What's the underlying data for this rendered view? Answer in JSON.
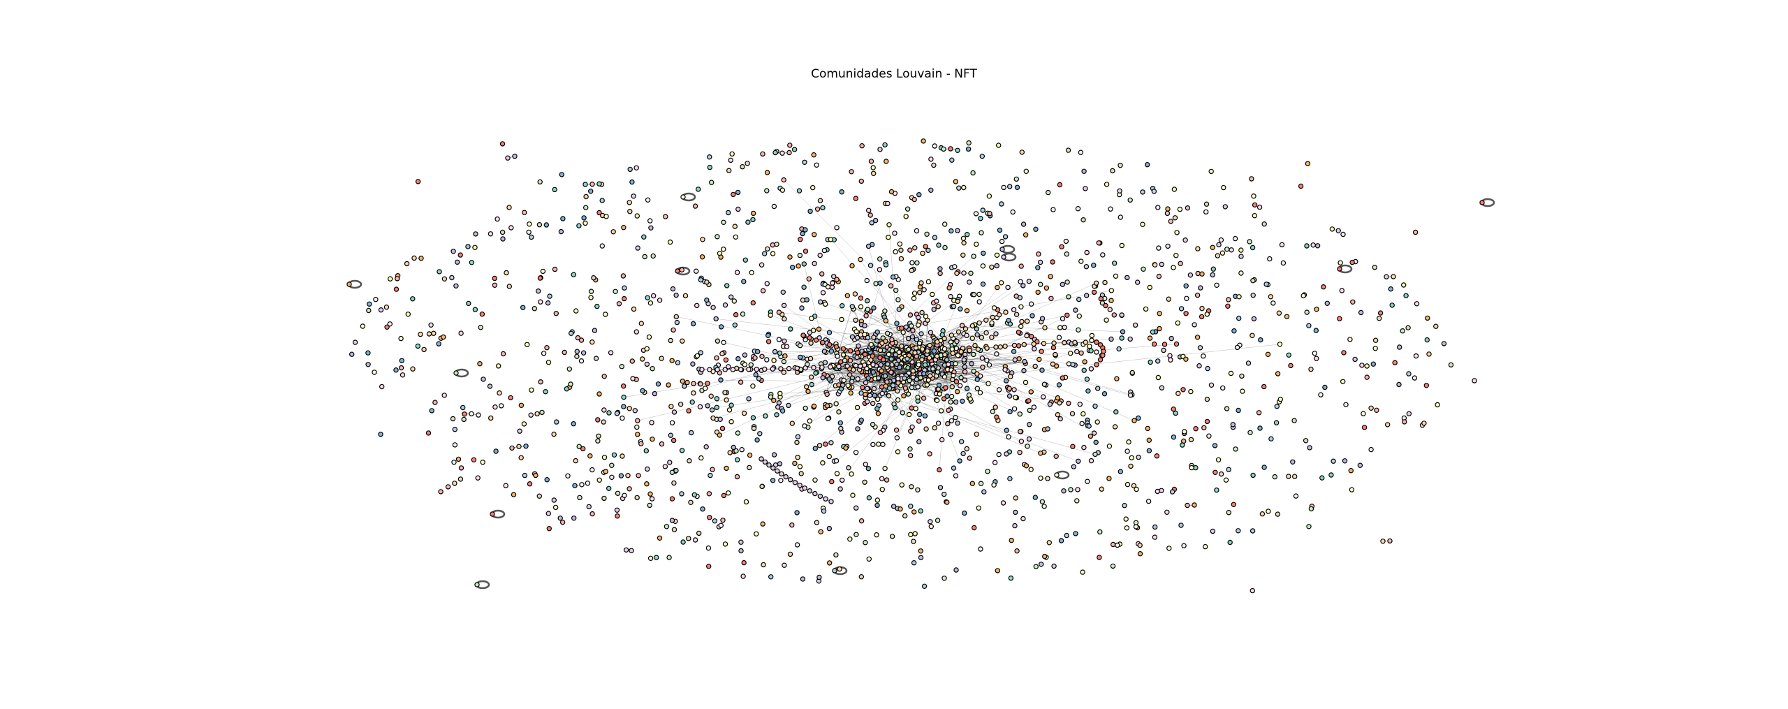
{
  "figure": {
    "title": "Comunidades Louvain - NFT"
  },
  "graph": {
    "layout": "force-directed",
    "node_style": "small circles with black outline, pastel fill",
    "edge_color": "#333333",
    "self_loop_color": "#555555",
    "node_edge_color": "#000000",
    "community_palette": [
      "#fbb4ae",
      "#b3cde3",
      "#ccebc5",
      "#decbe4",
      "#fed9a6",
      "#ffffcc",
      "#e5d8bd",
      "#fddaec",
      "#f2f2f2",
      "#8dd3c7",
      "#ffffb3",
      "#bebada",
      "#fb8072",
      "#80b1d3",
      "#fdb462"
    ]
  }
}
